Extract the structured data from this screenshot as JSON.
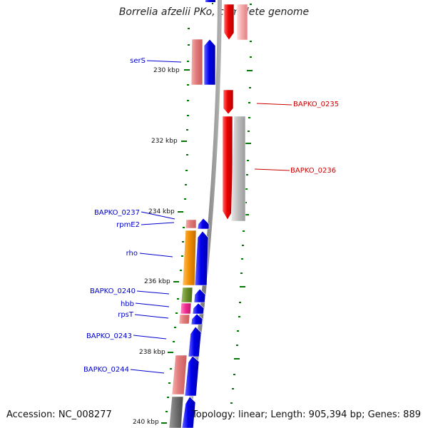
{
  "title": "Borrelia afzelii PKo, complete genome",
  "accession": "Accession: NC_008277",
  "summary": "Topology: linear; Length: 905,394 bp; Genes: 889",
  "ticks": [
    "230 kbp",
    "232 kbp",
    "234 kbp",
    "236 kbp",
    "238 kbp",
    "240 kbp"
  ],
  "left_labels": [
    "serS",
    "BAPKO_0237",
    "rpmE2",
    "rho",
    "BAPKO_0240",
    "hbb",
    "rpsT",
    "BAPKO_0243",
    "BAPKO_0244"
  ],
  "right_labels": [
    "BAPKO_0235",
    "BAPKO_0236"
  ],
  "colors": {
    "forward_label": "#0000cc",
    "reverse_label": "#cc0000",
    "forward_cds": "#0000ee",
    "reverse_cds": "#ee0000",
    "tick": "#007700",
    "backbone": "#888888",
    "orange_gene": "#f08c00",
    "green_gene": "#6a8f2a",
    "magenta_gene": "#ee2a8e"
  }
}
